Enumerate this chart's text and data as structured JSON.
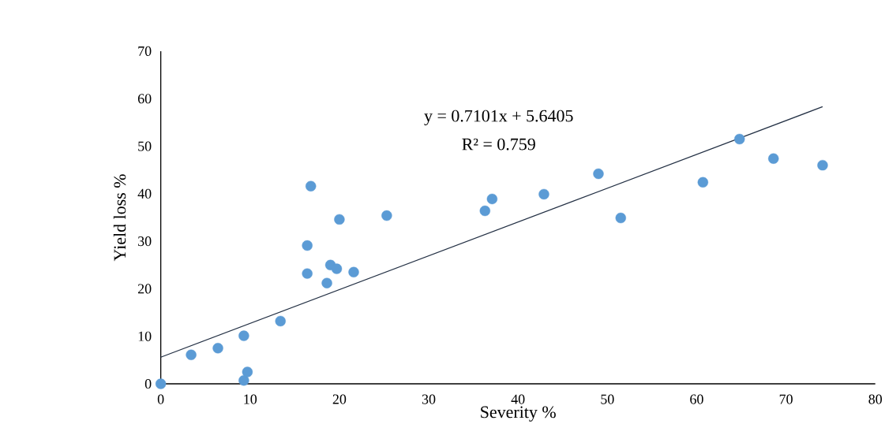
{
  "chart_data": {
    "type": "scatter",
    "xlabel": "Severity %",
    "ylabel": "Yield loss %",
    "xlim": [
      0,
      80
    ],
    "ylim": [
      0,
      70
    ],
    "xticks": [
      0,
      10,
      20,
      30,
      40,
      50,
      60,
      70,
      80
    ],
    "yticks": [
      0,
      10,
      20,
      30,
      40,
      50,
      60,
      70
    ],
    "series": [
      {
        "marker": "circle",
        "color": "#5b9bd5",
        "x": [
          0,
          3.4,
          6.4,
          9.3,
          9.3,
          9.7,
          13.4,
          16.4,
          16.4,
          16.8,
          18.6,
          19.0,
          19.7,
          20.0,
          21.6,
          25.3,
          36.3,
          37.1,
          42.9,
          49.0,
          51.5,
          60.7,
          64.8,
          68.6,
          74.1
        ],
        "values": [
          0,
          6.1,
          7.5,
          10.1,
          0.7,
          2.5,
          13.2,
          23.2,
          29.1,
          41.6,
          21.2,
          25.0,
          24.2,
          34.6,
          23.5,
          35.4,
          36.4,
          38.9,
          39.9,
          44.2,
          34.9,
          42.4,
          51.5,
          47.4,
          46.0
        ]
      },
      {
        "type": "line",
        "color": "#233044",
        "x": [
          0,
          74.1
        ],
        "values": [
          5.6,
          58.3
        ]
      }
    ],
    "annotations": [
      "y = 0.7101x + 5.6405",
      "R² = 0.759"
    ]
  }
}
